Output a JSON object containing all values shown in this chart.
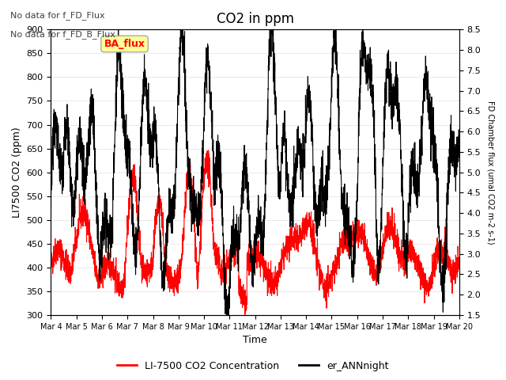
{
  "title": "CO2 in ppm",
  "ylabel_left": "LI7500 CO2 (ppm)",
  "ylabel_right": "FD Chamber flux (umal CO2 m-2 s-1)",
  "xlabel": "Time",
  "ylim_left": [
    300,
    900
  ],
  "ylim_right": [
    1.5,
    8.5
  ],
  "yticks_left": [
    300,
    350,
    400,
    450,
    500,
    550,
    600,
    650,
    700,
    750,
    800,
    850,
    900
  ],
  "yticks_right": [
    1.5,
    2.0,
    2.5,
    3.0,
    3.5,
    4.0,
    4.5,
    5.0,
    5.5,
    6.0,
    6.5,
    7.0,
    7.5,
    8.0,
    8.5
  ],
  "note1": "No data for f_FD_Flux",
  "note2": "No data for f_FD_B_Flux",
  "legend_label1": "LI-7500 CO2 Concentration",
  "legend_label2": "er_ANNnight",
  "ba_flux_label": "BA_flux",
  "line1_color": "#ff0000",
  "line2_color": "#000000",
  "background_color": "#ffffff",
  "grid_color": "#e0e0e0"
}
